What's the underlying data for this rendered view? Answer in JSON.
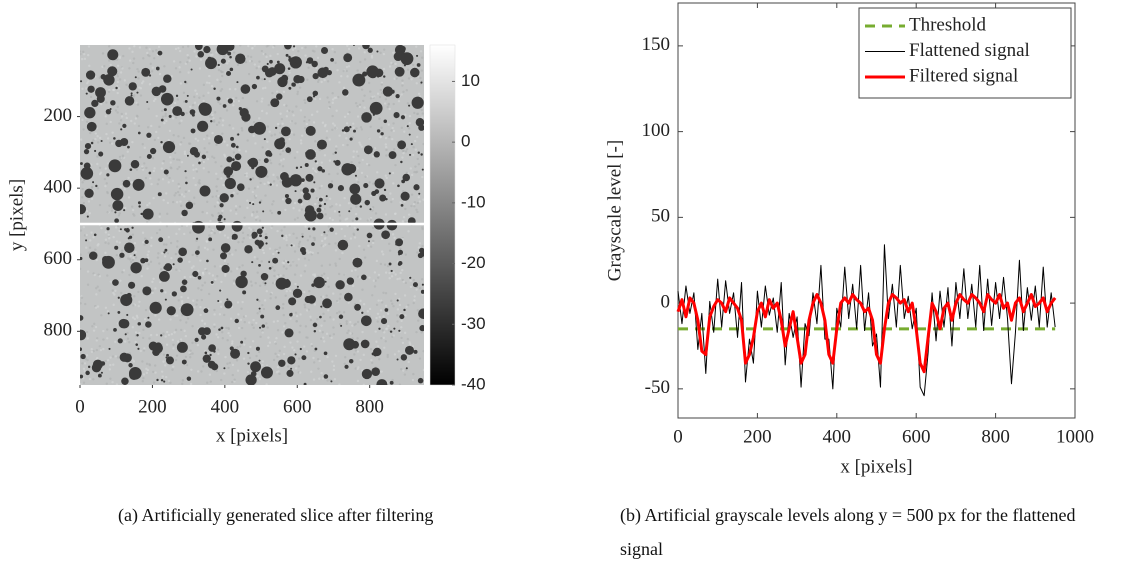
{
  "chart_data": [
    {
      "type": "heatmap",
      "xlabel": "x [pixels]",
      "ylabel": "y [pixels]",
      "xlim": [
        0,
        950
      ],
      "ylim": [
        0,
        950
      ],
      "y_inverted": true,
      "xticks": [
        0,
        200,
        400,
        600,
        800
      ],
      "yticks": [
        200,
        400,
        600,
        800
      ],
      "clim": [
        -40,
        16
      ],
      "cticks": [
        10,
        0,
        -10,
        -20,
        -30,
        -40
      ],
      "colormap": [
        "#000000",
        "#ffffff"
      ],
      "line_y": 500,
      "line_color": "#ffffff"
    },
    {
      "type": "line",
      "xlabel": "x [pixels]",
      "ylabel": "Grayscale level [-]",
      "xlim": [
        0,
        1000
      ],
      "ylim": [
        -67,
        175
      ],
      "xticks": [
        0,
        200,
        400,
        600,
        800,
        1000
      ],
      "yticks": [
        -50,
        0,
        50,
        100,
        150
      ],
      "legend": "upper right",
      "series": [
        {
          "name": "Threshold",
          "color": "#77ac30",
          "dash": true,
          "width": 3,
          "x": [
            0,
            950
          ],
          "values": [
            -15,
            -15
          ]
        },
        {
          "name": "Flattened signal",
          "color": "#000000",
          "width": 1,
          "x": [
            0,
            10,
            20,
            30,
            40,
            50,
            60,
            70,
            80,
            90,
            100,
            110,
            120,
            130,
            140,
            150,
            160,
            170,
            180,
            190,
            200,
            210,
            220,
            230,
            240,
            250,
            260,
            270,
            280,
            290,
            300,
            310,
            320,
            330,
            340,
            350,
            360,
            370,
            380,
            390,
            400,
            410,
            420,
            430,
            440,
            450,
            460,
            470,
            480,
            490,
            500,
            510,
            520,
            530,
            540,
            550,
            560,
            570,
            580,
            590,
            600,
            610,
            620,
            630,
            640,
            650,
            660,
            670,
            680,
            690,
            700,
            710,
            720,
            730,
            740,
            750,
            760,
            770,
            780,
            790,
            800,
            810,
            820,
            830,
            840,
            850,
            860,
            870,
            880,
            890,
            900,
            910,
            920,
            930,
            940,
            950
          ],
          "values": [
            7,
            -12,
            10,
            -6,
            6,
            -27,
            -6,
            -41,
            1,
            -17,
            14,
            -14,
            13,
            -6,
            6,
            -20,
            12,
            -46,
            -21,
            -35,
            7,
            -14,
            10,
            -7,
            3,
            -17,
            12,
            -36,
            -6,
            -20,
            -8,
            -49,
            -12,
            -19,
            6,
            -12,
            22,
            -21,
            -21,
            -50,
            -3,
            -14,
            21,
            -9,
            11,
            -15,
            22,
            -16,
            6,
            -25,
            -18,
            -49,
            34,
            -9,
            11,
            -14,
            22,
            -9,
            4,
            -15,
            -3,
            -49,
            -54,
            -29,
            6,
            -22,
            7,
            -14,
            9,
            -25,
            12,
            -9,
            20,
            -9,
            11,
            -14,
            22,
            -16,
            14,
            -13,
            12,
            -9,
            15,
            -9,
            -47,
            -17,
            25,
            -16,
            9,
            -10,
            10,
            -14,
            21,
            -14,
            6,
            -14
          ]
        },
        {
          "name": "Filtered signal",
          "color": "#ff0000",
          "width": 3,
          "x": [
            0,
            10,
            20,
            30,
            40,
            50,
            60,
            70,
            80,
            90,
            100,
            110,
            120,
            130,
            140,
            150,
            160,
            170,
            180,
            190,
            200,
            210,
            220,
            230,
            240,
            250,
            260,
            270,
            280,
            290,
            300,
            310,
            320,
            330,
            340,
            350,
            360,
            370,
            380,
            390,
            400,
            410,
            420,
            430,
            440,
            450,
            460,
            470,
            480,
            490,
            500,
            510,
            520,
            530,
            540,
            550,
            560,
            570,
            580,
            590,
            600,
            610,
            620,
            630,
            640,
            650,
            660,
            670,
            680,
            690,
            700,
            710,
            720,
            730,
            740,
            750,
            760,
            770,
            780,
            790,
            800,
            810,
            820,
            830,
            840,
            850,
            860,
            870,
            880,
            890,
            900,
            910,
            920,
            930,
            940,
            950
          ],
          "values": [
            -5,
            2,
            -8,
            3,
            0,
            -10,
            -28,
            -30,
            -8,
            -2,
            2,
            0,
            -5,
            3,
            0,
            -3,
            -10,
            -35,
            -30,
            -20,
            -5,
            0,
            -8,
            2,
            -3,
            0,
            -10,
            -25,
            -15,
            -5,
            -20,
            -35,
            -30,
            -10,
            0,
            5,
            0,
            -10,
            -30,
            -35,
            -15,
            0,
            3,
            0,
            5,
            2,
            0,
            -5,
            -3,
            -10,
            -30,
            -35,
            -15,
            0,
            5,
            3,
            0,
            2,
            -5,
            0,
            -15,
            -35,
            -40,
            -20,
            0,
            -5,
            -15,
            -3,
            0,
            -10,
            0,
            5,
            2,
            0,
            5,
            3,
            0,
            -5,
            5,
            2,
            0,
            5,
            -3,
            0,
            -10,
            0,
            3,
            -5,
            0,
            5,
            -2,
            0,
            3,
            -5,
            0,
            3
          ]
        }
      ]
    }
  ],
  "captions": [
    "(a) Artificially generated slice after filtering",
    "(b) Artificial grayscale levels along y = 500 px for the flattened signal"
  ]
}
